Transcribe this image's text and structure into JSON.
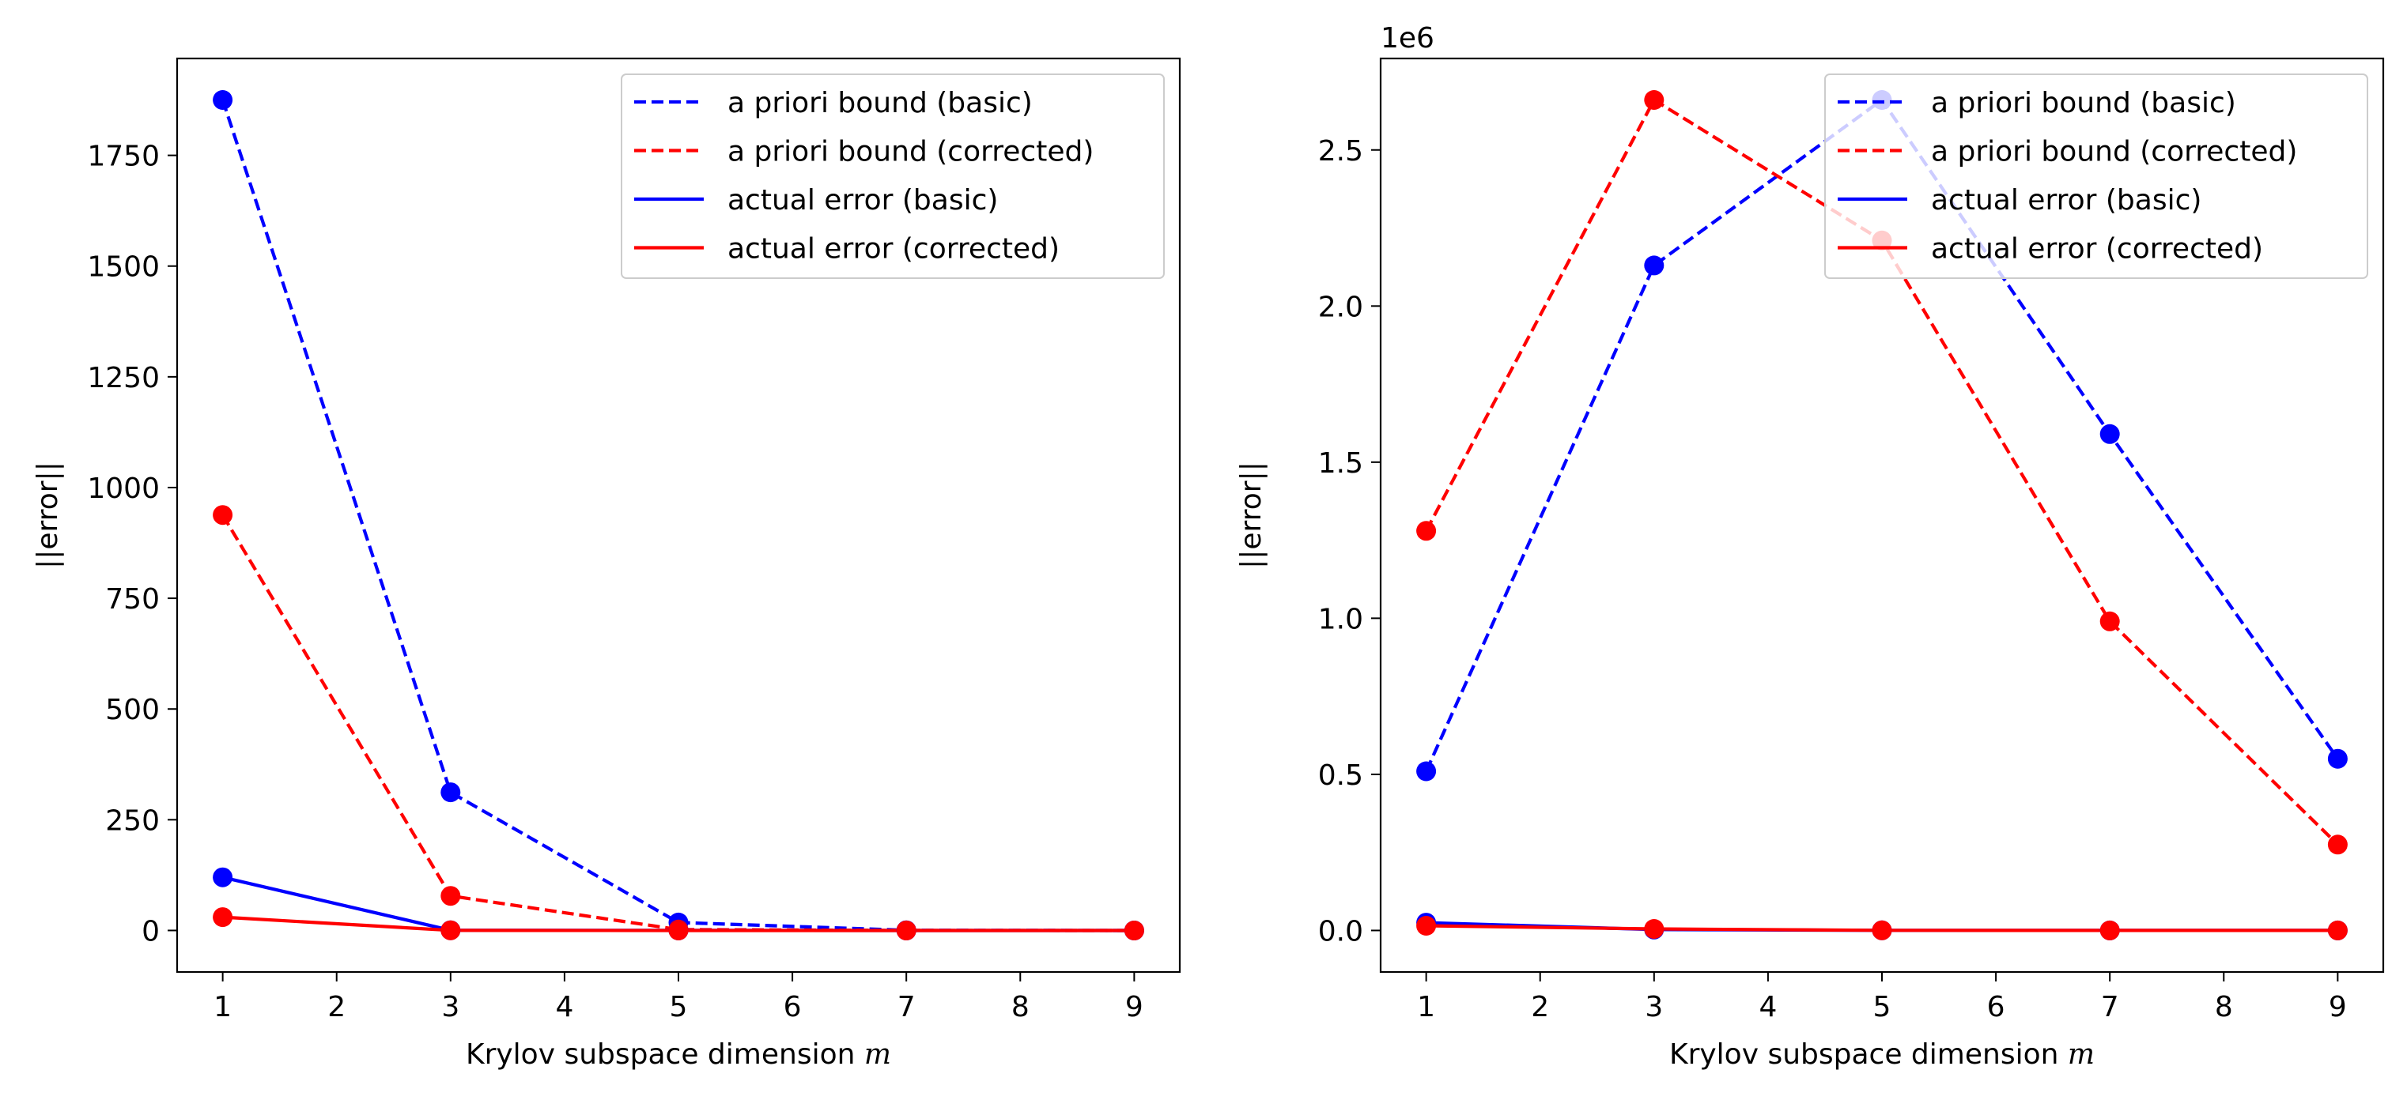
{
  "colors": {
    "basic": "#0000ff",
    "corrected": "#ff0000",
    "axis": "#000000",
    "legend_border": "#cccccc"
  },
  "chart_data": [
    {
      "type": "line",
      "title": "",
      "xlabel": "Krylov subspace dimension",
      "xlabel_var": "m",
      "ylabel": "||error||",
      "offset_label": "",
      "grid": false,
      "legend_position": "top-right",
      "xlim": [
        0.6,
        9.4
      ],
      "ylim": [
        -93.75,
        1968.75
      ],
      "x_ticks": [
        1,
        2,
        3,
        4,
        5,
        6,
        7,
        8,
        9
      ],
      "x_tick_labels": [
        "1",
        "2",
        "3",
        "4",
        "5",
        "6",
        "7",
        "8",
        "9"
      ],
      "y_ticks": [
        0,
        250,
        500,
        750,
        1000,
        1250,
        1500,
        1750
      ],
      "y_tick_labels": [
        "0",
        "250",
        "500",
        "750",
        "1000",
        "1250",
        "1500",
        "1750"
      ],
      "x": [
        1,
        3,
        5,
        7,
        9
      ],
      "series": [
        {
          "name": "a priori bound (basic)",
          "color": "basic",
          "style": "dashed",
          "values": [
            1875,
            312,
            18,
            0.4,
            0.005
          ]
        },
        {
          "name": "a priori bound (corrected)",
          "color": "corrected",
          "style": "dashed",
          "values": [
            938,
            78,
            2,
            0.05,
            0.001
          ]
        },
        {
          "name": "actual error (basic)",
          "color": "basic",
          "style": "solid",
          "values": [
            120,
            0.5,
            0.01,
            0.0001,
            1e-06
          ]
        },
        {
          "name": "actual error (corrected)",
          "color": "corrected",
          "style": "solid",
          "values": [
            30,
            0.2,
            0.005,
            0.0001,
            1e-06
          ]
        }
      ]
    },
    {
      "type": "line",
      "title": "",
      "xlabel": "Krylov subspace dimension",
      "xlabel_var": "m",
      "ylabel": "||error||",
      "offset_label": "1e6",
      "grid": false,
      "legend_position": "top-right",
      "xlim": [
        0.6,
        9.4
      ],
      "ylim": [
        -133000,
        2793000
      ],
      "x_ticks": [
        1,
        2,
        3,
        4,
        5,
        6,
        7,
        8,
        9
      ],
      "x_tick_labels": [
        "1",
        "2",
        "3",
        "4",
        "5",
        "6",
        "7",
        "8",
        "9"
      ],
      "y_ticks": [
        0,
        500000,
        1000000,
        1500000,
        2000000,
        2500000
      ],
      "y_tick_labels": [
        "0.0",
        "0.5",
        "1.0",
        "1.5",
        "2.0",
        "2.5"
      ],
      "x": [
        1,
        3,
        5,
        7,
        9
      ],
      "series": [
        {
          "name": "a priori bound (basic)",
          "color": "basic",
          "style": "dashed",
          "values": [
            510000,
            2130000,
            2660000,
            1590000,
            550000
          ]
        },
        {
          "name": "a priori bound (corrected)",
          "color": "corrected",
          "style": "dashed",
          "values": [
            1280000,
            2660000,
            2210000,
            990000,
            275000
          ]
        },
        {
          "name": "actual error (basic)",
          "color": "basic",
          "style": "solid",
          "values": [
            25000,
            3000,
            500,
            100,
            20
          ]
        },
        {
          "name": "actual error (corrected)",
          "color": "corrected",
          "style": "solid",
          "values": [
            15000,
            5000,
            500,
            100,
            20
          ]
        }
      ]
    }
  ]
}
